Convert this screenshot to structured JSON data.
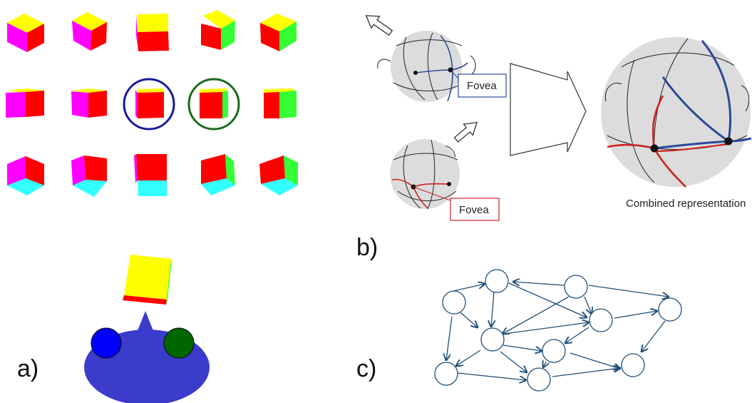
{
  "panel_labels": {
    "a": "a)",
    "b": "b)",
    "c": "c)"
  },
  "panel_b": {
    "top_fovea_label": "Fovea",
    "bottom_fovea_label": "Fovea",
    "combined_caption": "Combined representation"
  },
  "colors": {
    "yellow": "#ffff00",
    "red": "#ff0000",
    "magenta": "#ff00ff",
    "green": "#33ff33",
    "cyan": "#33ffff",
    "blue_eye": "#0000ff",
    "green_eye": "#006600",
    "robot_body": "#3b3bcc",
    "blue_circle": "#1a1a99",
    "green_circle": "#1a6a1a",
    "network_stroke": "#1f4e79",
    "sphere_fill": "#dcdcdc"
  }
}
